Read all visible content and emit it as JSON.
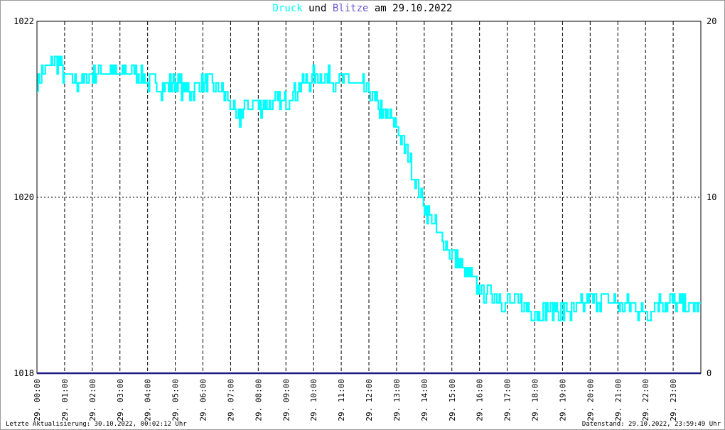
{
  "title": {
    "druck": "Druck",
    "und": "und",
    "blitze": "Blitze",
    "am": "am 29.10.2022"
  },
  "footer": {
    "left": "Letzte Aktualisierung: 30.10.2022, 00:02:12 Uhr",
    "right": "Datenstand: 29.10.2022, 23:59:49 Uhr"
  },
  "colors": {
    "pressure": "#00ffff",
    "lightning": "#1a1a80",
    "grid": "#000000",
    "title_druck": "#00ffff",
    "title_blitze": "#6a5acd"
  },
  "chart_data": {
    "type": "line",
    "title": "Druck und Blitze am 29.10.2022",
    "x_ticks": [
      "29. 00:00",
      "29. 01:00",
      "29. 02:00",
      "29. 03:00",
      "29. 04:00",
      "29. 05:00",
      "29. 06:00",
      "29. 07:00",
      "29. 08:00",
      "29. 09:00",
      "29. 10:00",
      "29. 11:00",
      "29. 12:00",
      "29. 13:00",
      "29. 14:00",
      "29. 15:00",
      "29. 16:00",
      "29. 17:00",
      "29. 18:00",
      "29. 19:00",
      "29. 20:00",
      "29. 21:00",
      "29. 22:00",
      "29. 23:00"
    ],
    "x_range_hours": [
      0,
      24
    ],
    "y_left": {
      "ticks": [
        "1018",
        "1020",
        "1022"
      ],
      "range": [
        1018,
        1022
      ]
    },
    "y_right": {
      "ticks": [
        "0",
        "10",
        "20"
      ],
      "range": [
        0,
        20
      ]
    },
    "grid": true,
    "series": [
      {
        "name": "Druck",
        "axis": "left",
        "x_hours": [
          0,
          0.25,
          0.5,
          0.75,
          1,
          1.5,
          2,
          2.5,
          3,
          3.5,
          4,
          4.5,
          5,
          5.5,
          6,
          6.5,
          7,
          7.25,
          7.5,
          8,
          8.5,
          9,
          9.5,
          10,
          10.5,
          11,
          11.5,
          12,
          12.5,
          13,
          13.5,
          14,
          14.5,
          15,
          15.5,
          16,
          16.5,
          17,
          17.5,
          18,
          18.5,
          19,
          19.5,
          20,
          20.5,
          21,
          21.5,
          22,
          22.5,
          23,
          23.5,
          24
        ],
        "values": [
          1021.3,
          1021.45,
          1021.5,
          1021.55,
          1021.35,
          1021.3,
          1021.4,
          1021.45,
          1021.4,
          1021.45,
          1021.3,
          1021.25,
          1021.3,
          1021.2,
          1021.3,
          1021.25,
          1021.05,
          1020.85,
          1021.05,
          1021.05,
          1021.05,
          1021.1,
          1021.25,
          1021.35,
          1021.35,
          1021.35,
          1021.3,
          1021.2,
          1020.95,
          1020.8,
          1020.4,
          1019.9,
          1019.6,
          1019.35,
          1019.15,
          1018.95,
          1018.9,
          1018.8,
          1018.8,
          1018.7,
          1018.75,
          1018.7,
          1018.7,
          1018.85,
          1018.85,
          1018.8,
          1018.75,
          1018.7,
          1018.8,
          1018.8,
          1018.75,
          1018.75
        ]
      },
      {
        "name": "Blitze",
        "axis": "right",
        "x_hours": [
          0,
          24
        ],
        "values": [
          0,
          0
        ]
      }
    ]
  }
}
